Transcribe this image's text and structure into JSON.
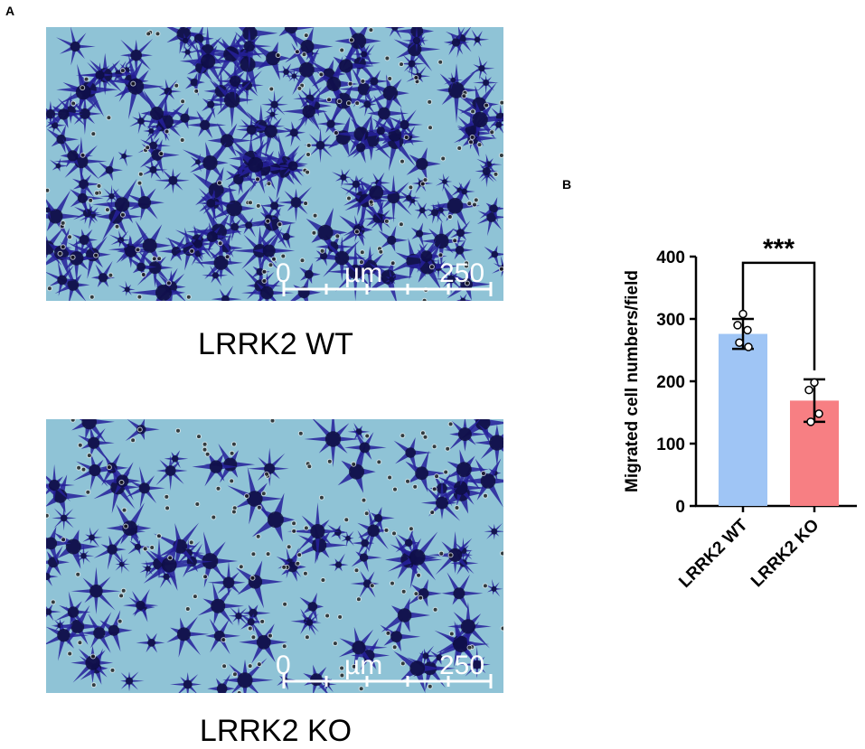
{
  "panel_a": {
    "letter": "A",
    "images": [
      {
        "caption": "LRRK2 WT",
        "scale_bar": {
          "start": "0",
          "unit": "µm",
          "end": "250"
        },
        "stain_density": "high"
      },
      {
        "caption": "LRRK2 KO",
        "scale_bar": {
          "start": "0",
          "unit": "µm",
          "end": "250"
        },
        "stain_density": "medium"
      }
    ],
    "colors": {
      "background": "#8fc3d6",
      "stain": "#26209a",
      "stain_dark": "#0b0b3a"
    }
  },
  "panel_b": {
    "letter": "B",
    "significance": "***",
    "chart_data": {
      "type": "bar",
      "categories": [
        "LRRK2 WT",
        "LRRK2 KO"
      ],
      "values": [
        276,
        169
      ],
      "errors": [
        24,
        34
      ],
      "points": [
        [
          308,
          290,
          282,
          262,
          255
        ],
        [
          198,
          186,
          148,
          135
        ]
      ],
      "colors": [
        "#9fc5f5",
        "#f77f83"
      ],
      "ylabel": "Migrated cell numbers/field",
      "xlabel": "",
      "ylim": [
        0,
        400
      ],
      "yticks": [
        0,
        100,
        200,
        300,
        400
      ],
      "grid": false
    }
  }
}
